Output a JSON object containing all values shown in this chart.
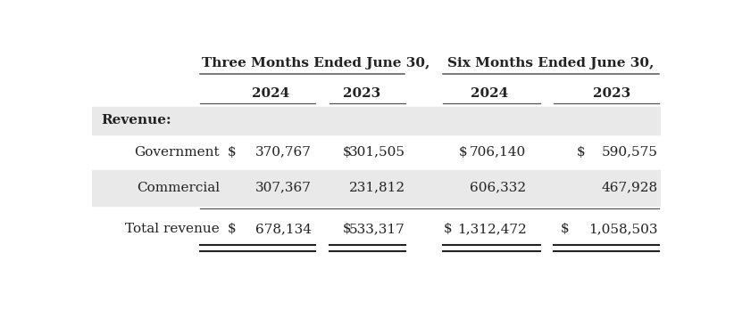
{
  "title_three_months": "Three Months Ended June 30,",
  "title_six_months": "Six Months Ended June 30,",
  "col_headers": [
    "2024",
    "2023",
    "2024",
    "2023"
  ],
  "section_label": "Revenue:",
  "rows": [
    {
      "label": "Government",
      "has_dollar": true,
      "values": [
        "370,767",
        "301,505",
        "706,140",
        "590,575"
      ],
      "stripe": false
    },
    {
      "label": "Commercial",
      "has_dollar": false,
      "values": [
        "307,367",
        "231,812",
        "606,332",
        "467,928"
      ],
      "stripe": true
    },
    {
      "label": "Total revenue",
      "has_dollar": true,
      "values": [
        "678,134",
        "533,317",
        "1,312,472",
        "1,058,503"
      ],
      "stripe": false,
      "is_total": true
    }
  ],
  "bg_color": "#ffffff",
  "stripe_color": "#e9e9e9",
  "text_color": "#222222",
  "figsize": [
    8.22,
    3.57
  ],
  "dpi": 100
}
